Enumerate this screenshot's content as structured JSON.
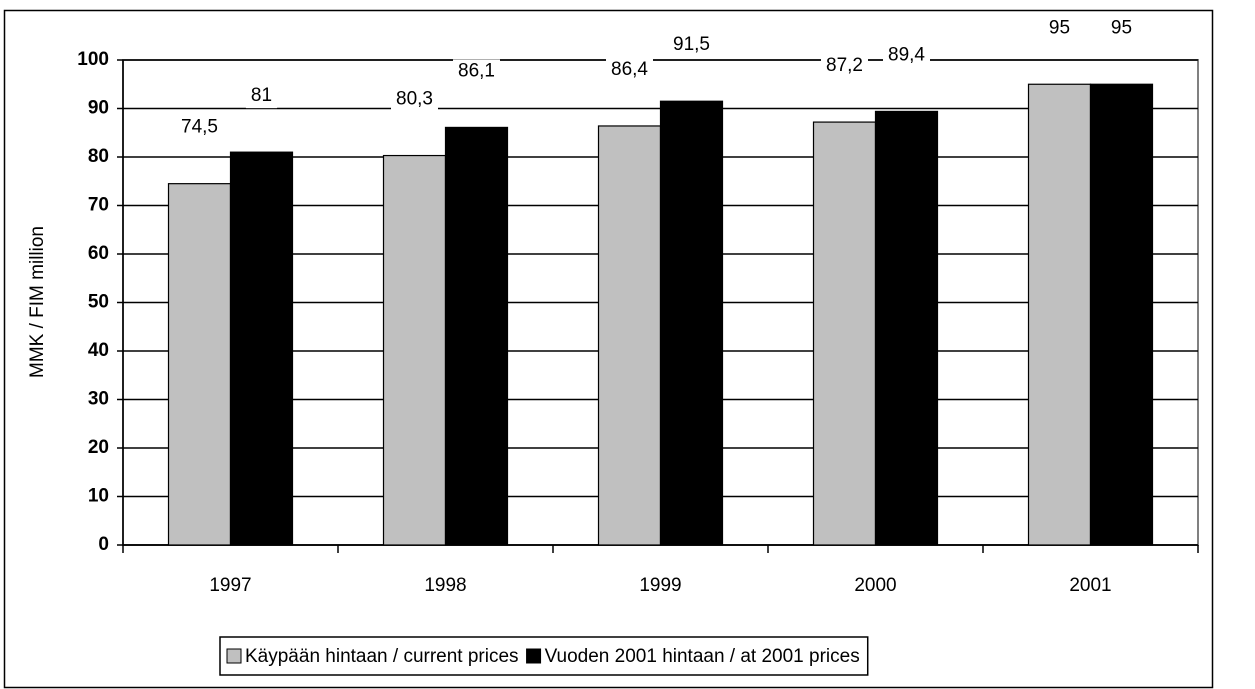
{
  "chart_data": {
    "type": "bar",
    "y_label": "MMK / FIM million",
    "categories": [
      "1997",
      "1998",
      "1999",
      "2000",
      "2001"
    ],
    "series": [
      {
        "name": "Käypään hintaan / current prices",
        "color": "#c0c0c0",
        "values": [
          74.5,
          80.3,
          86.4,
          87.2,
          95
        ],
        "value_labels": [
          "74,5",
          "80,3",
          "86,4",
          "87,2",
          "95"
        ]
      },
      {
        "name": "Vuoden 2001 hintaan / at 2001 prices",
        "color": "#000000",
        "values": [
          81,
          86.1,
          91.5,
          89.4,
          95
        ],
        "value_labels": [
          "81",
          "86,1",
          "91,5",
          "89,4",
          "95"
        ]
      }
    ],
    "ylim": [
      0,
      100
    ],
    "yticks": [
      0,
      10,
      20,
      30,
      40,
      50,
      60,
      70,
      80,
      90,
      100
    ],
    "grid": true,
    "legend": "bottom"
  }
}
